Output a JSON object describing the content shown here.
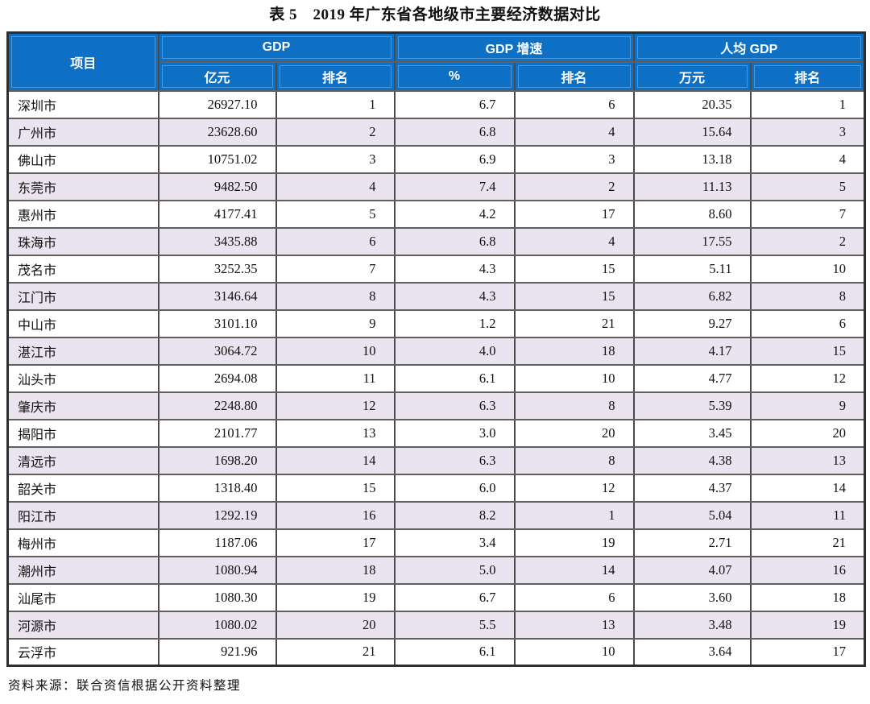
{
  "page": {
    "title": "表 5　2019 年广东省各地级市主要经济数据对比",
    "source_note": "资料来源：联合资信根据公开资料整理"
  },
  "colors": {
    "header_bg": "#0d70c5",
    "header_text": "#ffffff",
    "row_alt_bg": "#e9e4ef",
    "border_dark": "#2e2e2e"
  },
  "table": {
    "header": {
      "item": "项目",
      "groups": [
        {
          "label": "GDP",
          "sub": [
            "亿元",
            "排名"
          ]
        },
        {
          "label": "GDP 增速",
          "sub": [
            "%",
            "排名"
          ]
        },
        {
          "label": "人均 GDP",
          "sub": [
            "万元",
            "排名"
          ]
        }
      ]
    },
    "rows": [
      {
        "city": "深圳市",
        "gdp": "26927.10",
        "gdp_rank": "1",
        "growth": "6.7",
        "growth_rank": "6",
        "pc_gdp": "20.35",
        "pc_rank": "1"
      },
      {
        "city": "广州市",
        "gdp": "23628.60",
        "gdp_rank": "2",
        "growth": "6.8",
        "growth_rank": "4",
        "pc_gdp": "15.64",
        "pc_rank": "3"
      },
      {
        "city": "佛山市",
        "gdp": "10751.02",
        "gdp_rank": "3",
        "growth": "6.9",
        "growth_rank": "3",
        "pc_gdp": "13.18",
        "pc_rank": "4"
      },
      {
        "city": "东莞市",
        "gdp": "9482.50",
        "gdp_rank": "4",
        "growth": "7.4",
        "growth_rank": "2",
        "pc_gdp": "11.13",
        "pc_rank": "5"
      },
      {
        "city": "惠州市",
        "gdp": "4177.41",
        "gdp_rank": "5",
        "growth": "4.2",
        "growth_rank": "17",
        "pc_gdp": "8.60",
        "pc_rank": "7"
      },
      {
        "city": "珠海市",
        "gdp": "3435.88",
        "gdp_rank": "6",
        "growth": "6.8",
        "growth_rank": "4",
        "pc_gdp": "17.55",
        "pc_rank": "2"
      },
      {
        "city": "茂名市",
        "gdp": "3252.35",
        "gdp_rank": "7",
        "growth": "4.3",
        "growth_rank": "15",
        "pc_gdp": "5.11",
        "pc_rank": "10"
      },
      {
        "city": "江门市",
        "gdp": "3146.64",
        "gdp_rank": "8",
        "growth": "4.3",
        "growth_rank": "15",
        "pc_gdp": "6.82",
        "pc_rank": "8"
      },
      {
        "city": "中山市",
        "gdp": "3101.10",
        "gdp_rank": "9",
        "growth": "1.2",
        "growth_rank": "21",
        "pc_gdp": "9.27",
        "pc_rank": "6"
      },
      {
        "city": "湛江市",
        "gdp": "3064.72",
        "gdp_rank": "10",
        "growth": "4.0",
        "growth_rank": "18",
        "pc_gdp": "4.17",
        "pc_rank": "15"
      },
      {
        "city": "汕头市",
        "gdp": "2694.08",
        "gdp_rank": "11",
        "growth": "6.1",
        "growth_rank": "10",
        "pc_gdp": "4.77",
        "pc_rank": "12"
      },
      {
        "city": "肇庆市",
        "gdp": "2248.80",
        "gdp_rank": "12",
        "growth": "6.3",
        "growth_rank": "8",
        "pc_gdp": "5.39",
        "pc_rank": "9"
      },
      {
        "city": "揭阳市",
        "gdp": "2101.77",
        "gdp_rank": "13",
        "growth": "3.0",
        "growth_rank": "20",
        "pc_gdp": "3.45",
        "pc_rank": "20"
      },
      {
        "city": "清远市",
        "gdp": "1698.20",
        "gdp_rank": "14",
        "growth": "6.3",
        "growth_rank": "8",
        "pc_gdp": "4.38",
        "pc_rank": "13"
      },
      {
        "city": "韶关市",
        "gdp": "1318.40",
        "gdp_rank": "15",
        "growth": "6.0",
        "growth_rank": "12",
        "pc_gdp": "4.37",
        "pc_rank": "14"
      },
      {
        "city": "阳江市",
        "gdp": "1292.19",
        "gdp_rank": "16",
        "growth": "8.2",
        "growth_rank": "1",
        "pc_gdp": "5.04",
        "pc_rank": "11"
      },
      {
        "city": "梅州市",
        "gdp": "1187.06",
        "gdp_rank": "17",
        "growth": "3.4",
        "growth_rank": "19",
        "pc_gdp": "2.71",
        "pc_rank": "21"
      },
      {
        "city": "潮州市",
        "gdp": "1080.94",
        "gdp_rank": "18",
        "growth": "5.0",
        "growth_rank": "14",
        "pc_gdp": "4.07",
        "pc_rank": "16"
      },
      {
        "city": "汕尾市",
        "gdp": "1080.30",
        "gdp_rank": "19",
        "growth": "6.7",
        "growth_rank": "6",
        "pc_gdp": "3.60",
        "pc_rank": "18"
      },
      {
        "city": "河源市",
        "gdp": "1080.02",
        "gdp_rank": "20",
        "growth": "5.5",
        "growth_rank": "13",
        "pc_gdp": "3.48",
        "pc_rank": "19"
      },
      {
        "city": "云浮市",
        "gdp": "921.96",
        "gdp_rank": "21",
        "growth": "6.1",
        "growth_rank": "10",
        "pc_gdp": "3.64",
        "pc_rank": "17"
      }
    ]
  }
}
